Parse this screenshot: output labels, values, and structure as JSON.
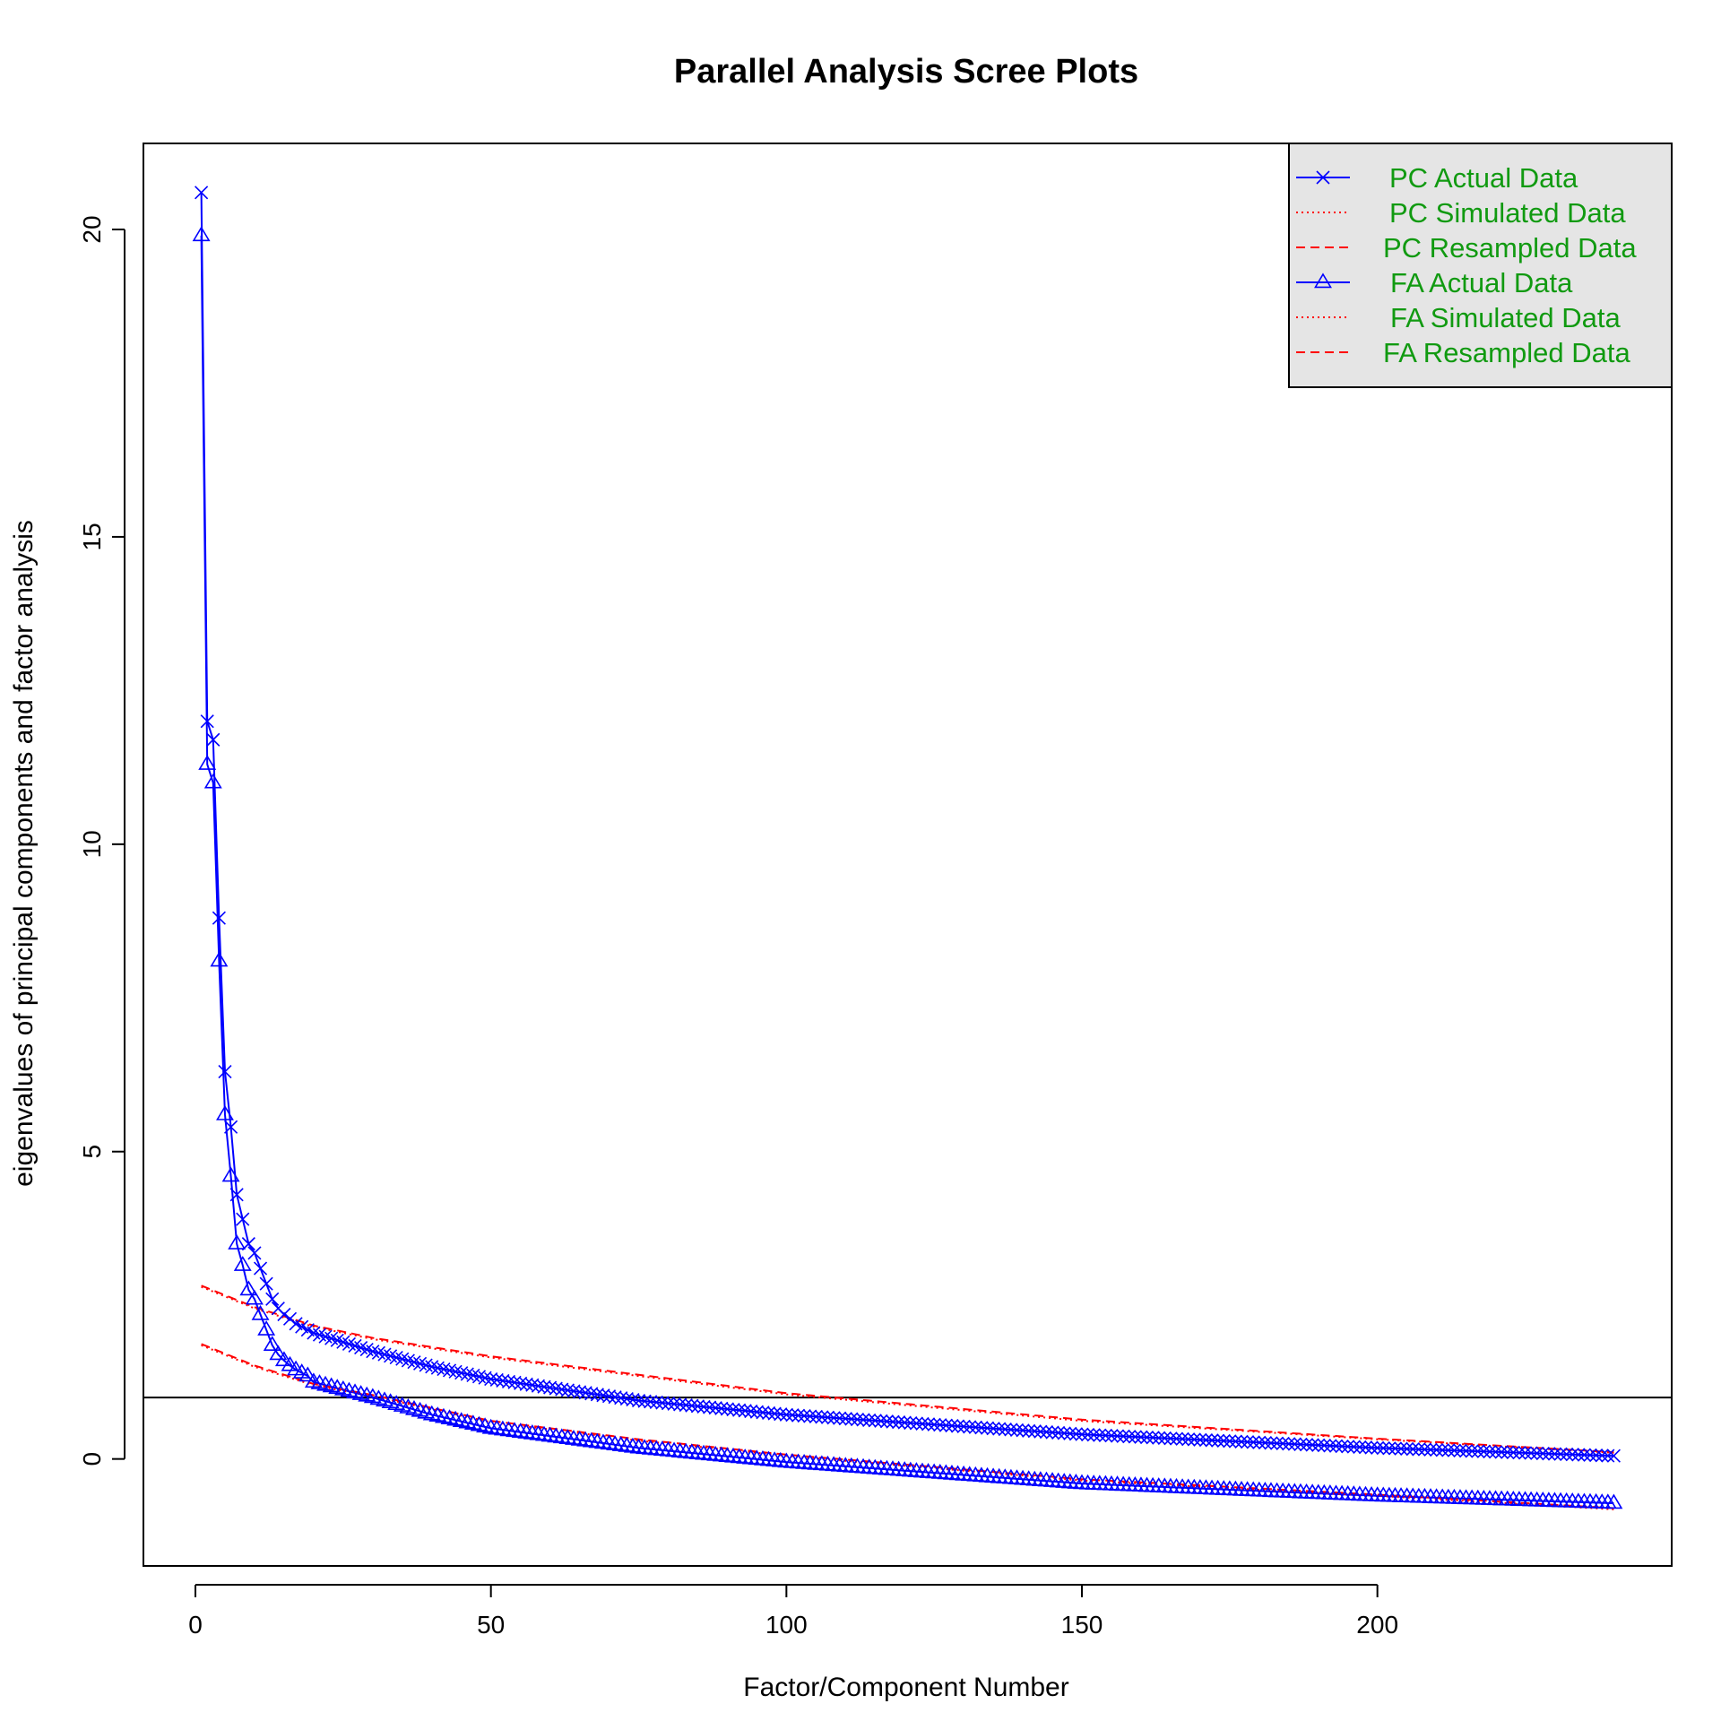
{
  "chart_data": {
    "type": "line",
    "title": "Parallel Analysis Scree Plots",
    "xlabel": "Factor/Component Number",
    "ylabel": "eigenvalues of principal components and factor analysis",
    "xlim": [
      -8.8,
      249.8
    ],
    "ylim": [
      -1.74,
      21.4
    ],
    "x_ticks": [
      0,
      50,
      100,
      150,
      200
    ],
    "y_ticks": [
      0,
      5,
      10,
      15,
      20
    ],
    "reference_line_y": 1,
    "n_points": 240,
    "legend": {
      "position": "top-right",
      "entries": [
        {
          "label": "PC  Actual Data",
          "style": "solid-x"
        },
        {
          "label": "PC  Simulated Data",
          "style": "dotted"
        },
        {
          "label": "PC  Resampled Data",
          "style": "dashed"
        },
        {
          "label": "FA  Actual Data",
          "style": "solid-triangle"
        },
        {
          "label": "FA  Simulated Data",
          "style": "dotted"
        },
        {
          "label": "FA  Resampled Data",
          "style": "dashed"
        }
      ]
    },
    "colors": {
      "actual": "#0000ff",
      "simulated": "#ff0000",
      "resampled": "#ff0000",
      "legend_text": "#119a11",
      "legend_bg": "#e5e5e5"
    },
    "series": [
      {
        "name": "PC  Actual Data",
        "marker": "x",
        "head_values": [
          20.6,
          12.0,
          11.7,
          8.8,
          6.3,
          5.4,
          4.3,
          3.9,
          3.5,
          3.35,
          3.1,
          2.85,
          2.6,
          2.45,
          2.35,
          2.28,
          2.2,
          2.15,
          2.1
        ],
        "tail_anchors": [
          [
            20,
            2.05
          ],
          [
            30,
            1.75
          ],
          [
            40,
            1.5
          ],
          [
            50,
            1.3
          ],
          [
            75,
            0.95
          ],
          [
            100,
            0.72
          ],
          [
            150,
            0.4
          ],
          [
            200,
            0.18
          ],
          [
            240,
            0.05
          ]
        ]
      },
      {
        "name": "PC  Simulated Data",
        "style": "dotted",
        "anchors": [
          [
            1,
            2.8
          ],
          [
            10,
            2.45
          ],
          [
            20,
            2.15
          ],
          [
            30,
            1.95
          ],
          [
            50,
            1.65
          ],
          [
            75,
            1.35
          ],
          [
            100,
            1.05
          ],
          [
            150,
            0.62
          ],
          [
            200,
            0.32
          ],
          [
            240,
            0.1
          ]
        ]
      },
      {
        "name": "PC  Resampled Data",
        "style": "dashed",
        "anchors": [
          [
            1,
            2.82
          ],
          [
            10,
            2.47
          ],
          [
            20,
            2.17
          ],
          [
            30,
            1.97
          ],
          [
            50,
            1.67
          ],
          [
            75,
            1.37
          ],
          [
            100,
            1.07
          ],
          [
            150,
            0.64
          ],
          [
            200,
            0.33
          ],
          [
            240,
            0.11
          ]
        ]
      },
      {
        "name": "FA  Actual Data",
        "marker": "triangle",
        "head_values": [
          19.9,
          11.3,
          11.0,
          8.1,
          5.6,
          4.6,
          3.5,
          3.15,
          2.75,
          2.6,
          2.35,
          2.1,
          1.85,
          1.7,
          1.6,
          1.52,
          1.45,
          1.4,
          1.35
        ],
        "tail_anchors": [
          [
            20,
            1.25
          ],
          [
            30,
            1.0
          ],
          [
            40,
            0.72
          ],
          [
            50,
            0.5
          ],
          [
            75,
            0.18
          ],
          [
            100,
            -0.05
          ],
          [
            150,
            -0.4
          ],
          [
            200,
            -0.6
          ],
          [
            240,
            -0.72
          ]
        ]
      },
      {
        "name": "FA  Simulated Data",
        "style": "dotted",
        "anchors": [
          [
            1,
            1.85
          ],
          [
            10,
            1.5
          ],
          [
            20,
            1.2
          ],
          [
            30,
            1.02
          ],
          [
            50,
            0.6
          ],
          [
            75,
            0.3
          ],
          [
            100,
            0.05
          ],
          [
            150,
            -0.35
          ],
          [
            200,
            -0.6
          ],
          [
            240,
            -0.82
          ]
        ]
      },
      {
        "name": "FA  Resampled Data",
        "style": "dashed",
        "anchors": [
          [
            1,
            1.87
          ],
          [
            10,
            1.52
          ],
          [
            20,
            1.22
          ],
          [
            30,
            1.04
          ],
          [
            50,
            0.62
          ],
          [
            75,
            0.32
          ],
          [
            100,
            0.07
          ],
          [
            150,
            -0.33
          ],
          [
            200,
            -0.58
          ],
          [
            240,
            -0.8
          ]
        ]
      }
    ]
  }
}
